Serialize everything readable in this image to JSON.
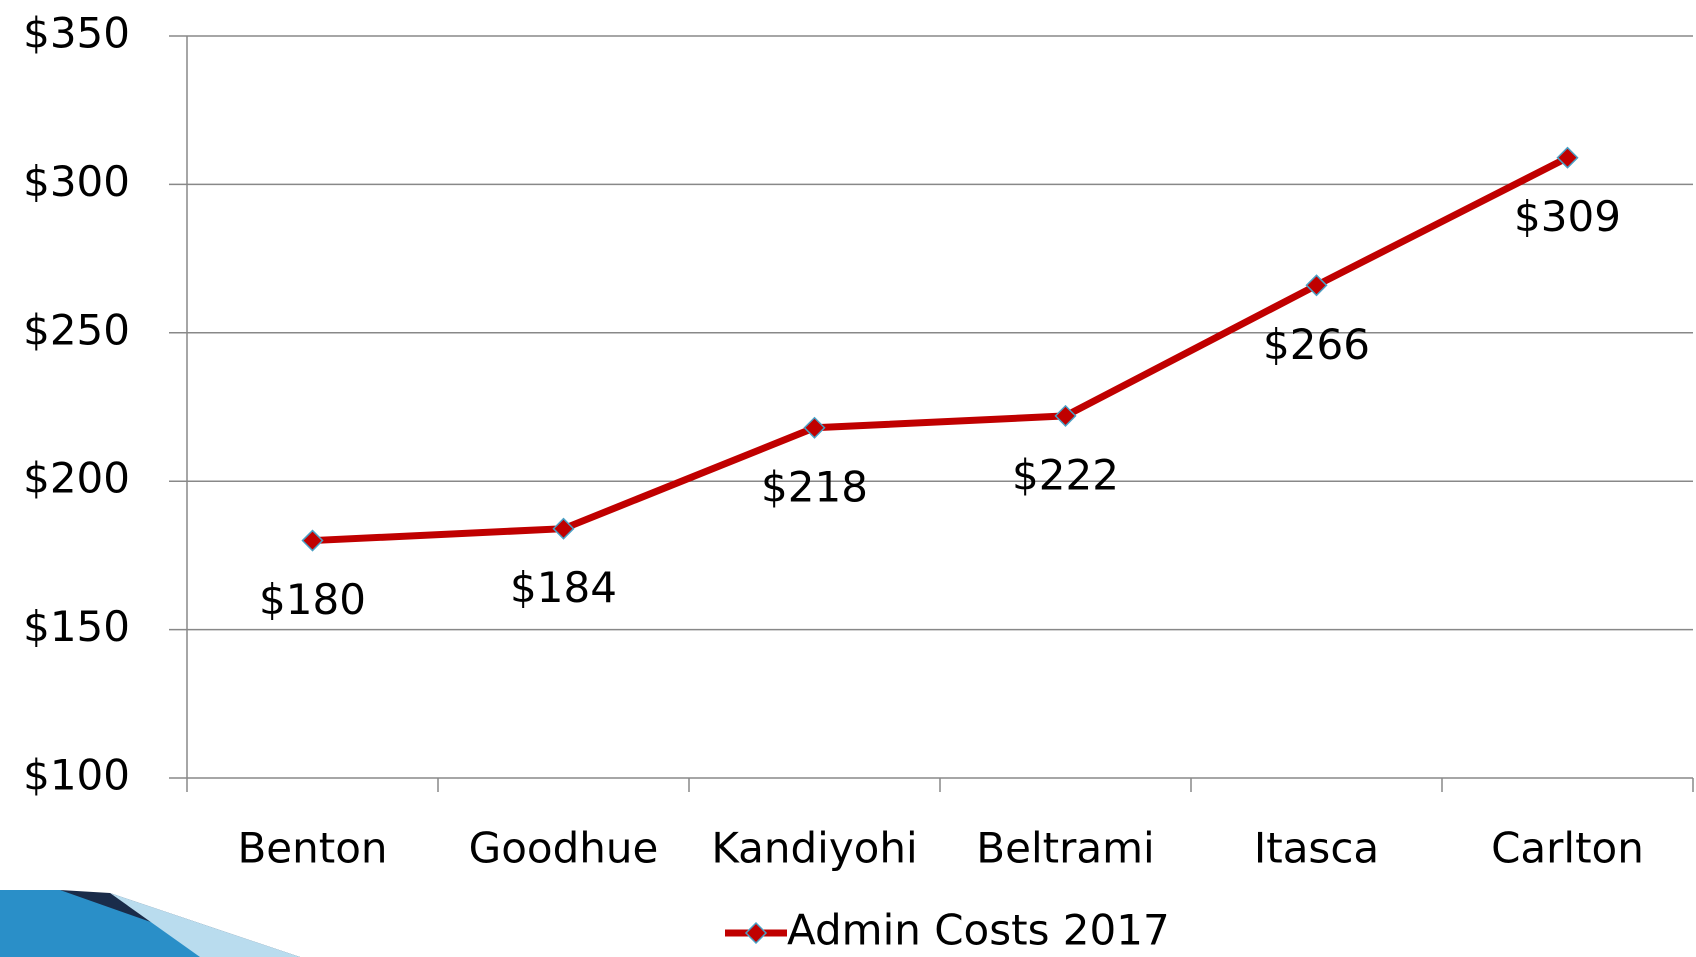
{
  "chart_data": {
    "type": "line",
    "categories": [
      "Benton",
      "Goodhue",
      "Kandiyohi",
      "Beltrami",
      "Itasca",
      "Carlton"
    ],
    "series": [
      {
        "name": "Admin Costs 2017",
        "color": "#c00000",
        "values": [
          180,
          184,
          218,
          222,
          266,
          309
        ],
        "value_labels": [
          "$180",
          "$184",
          "$218",
          "$222",
          "$266",
          "$309"
        ]
      }
    ],
    "ylim": [
      100,
      350
    ],
    "yticks": [
      {
        "value": 100,
        "label": "$100"
      },
      {
        "value": 150,
        "label": "$150"
      },
      {
        "value": 200,
        "label": "$200"
      },
      {
        "value": 250,
        "label": "$250"
      },
      {
        "value": 300,
        "label": "$300"
      },
      {
        "value": 350,
        "label": "$350"
      }
    ],
    "grid": true,
    "legend": "bottom"
  }
}
